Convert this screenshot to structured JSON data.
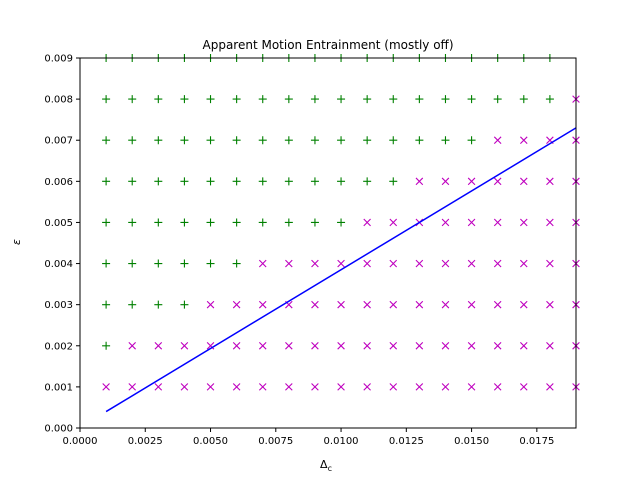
{
  "chart_data": {
    "type": "scatter",
    "title": "Apparent Motion Entrainment (mostly off)",
    "xlabel": "Δ",
    "xlabel_sub": "c",
    "ylabel": "ε",
    "xlim": [
      0.0,
      0.019
    ],
    "ylim": [
      0.0,
      0.009
    ],
    "x_ticks": [
      "0.0000",
      "0.0025",
      "0.0050",
      "0.0075",
      "0.0100",
      "0.0125",
      "0.0150",
      "0.0175"
    ],
    "y_ticks": [
      "0.000",
      "0.001",
      "0.002",
      "0.003",
      "0.004",
      "0.005",
      "0.006",
      "0.007",
      "0.008",
      "0.009"
    ],
    "grid": false,
    "colors": {
      "entrained": "#008000",
      "not_entrained": "#bf00bf",
      "boundary": "#0000ff"
    },
    "series": [
      {
        "marker": "plus",
        "color": "#008000",
        "rows": [
          {
            "y": 0.002,
            "x": [
              0.001
            ]
          },
          {
            "y": 0.003,
            "x": [
              0.001,
              0.002,
              0.003,
              0.004
            ]
          },
          {
            "y": 0.004,
            "x": [
              0.001,
              0.002,
              0.003,
              0.004,
              0.005,
              0.006
            ]
          },
          {
            "y": 0.005,
            "x": [
              0.001,
              0.002,
              0.003,
              0.004,
              0.005,
              0.006,
              0.007,
              0.008,
              0.009,
              0.01
            ]
          },
          {
            "y": 0.006,
            "x": [
              0.001,
              0.002,
              0.003,
              0.004,
              0.005,
              0.006,
              0.007,
              0.008,
              0.009,
              0.01,
              0.011,
              0.012
            ]
          },
          {
            "y": 0.007,
            "x": [
              0.001,
              0.002,
              0.003,
              0.004,
              0.005,
              0.006,
              0.007,
              0.008,
              0.009,
              0.01,
              0.011,
              0.012,
              0.013,
              0.014,
              0.015
            ]
          },
          {
            "y": 0.008,
            "x": [
              0.001,
              0.002,
              0.003,
              0.004,
              0.005,
              0.006,
              0.007,
              0.008,
              0.009,
              0.01,
              0.011,
              0.012,
              0.013,
              0.014,
              0.015,
              0.016,
              0.017,
              0.018
            ]
          },
          {
            "y": 0.009,
            "x": [
              0.001,
              0.002,
              0.003,
              0.004,
              0.005,
              0.006,
              0.007,
              0.008,
              0.009,
              0.01,
              0.011,
              0.012,
              0.013,
              0.014,
              0.015,
              0.016,
              0.017,
              0.018
            ]
          }
        ]
      },
      {
        "marker": "x",
        "color": "#bf00bf",
        "rows": [
          {
            "y": 0.001,
            "x": [
              0.001,
              0.002,
              0.003,
              0.004,
              0.005,
              0.006,
              0.007,
              0.008,
              0.009,
              0.01,
              0.011,
              0.012,
              0.013,
              0.014,
              0.015,
              0.016,
              0.017,
              0.018,
              0.019
            ]
          },
          {
            "y": 0.002,
            "x": [
              0.002,
              0.003,
              0.004,
              0.005,
              0.006,
              0.007,
              0.008,
              0.009,
              0.01,
              0.011,
              0.012,
              0.013,
              0.014,
              0.015,
              0.016,
              0.017,
              0.018,
              0.019
            ]
          },
          {
            "y": 0.003,
            "x": [
              0.005,
              0.006,
              0.007,
              0.008,
              0.009,
              0.01,
              0.011,
              0.012,
              0.013,
              0.014,
              0.015,
              0.016,
              0.017,
              0.018,
              0.019
            ]
          },
          {
            "y": 0.004,
            "x": [
              0.007,
              0.008,
              0.009,
              0.01,
              0.011,
              0.012,
              0.013,
              0.014,
              0.015,
              0.016,
              0.017,
              0.018,
              0.019
            ]
          },
          {
            "y": 0.005,
            "x": [
              0.011,
              0.012,
              0.013,
              0.014,
              0.015,
              0.016,
              0.017,
              0.018,
              0.019
            ]
          },
          {
            "y": 0.006,
            "x": [
              0.013,
              0.014,
              0.015,
              0.016,
              0.017,
              0.018,
              0.019
            ]
          },
          {
            "y": 0.007,
            "x": [
              0.016,
              0.017,
              0.018,
              0.019
            ]
          },
          {
            "y": 0.008,
            "x": [
              0.019
            ]
          }
        ]
      }
    ],
    "line": {
      "color": "#0000ff",
      "x": [
        0.001,
        0.019
      ],
      "y": [
        0.0004,
        0.0073
      ]
    }
  }
}
